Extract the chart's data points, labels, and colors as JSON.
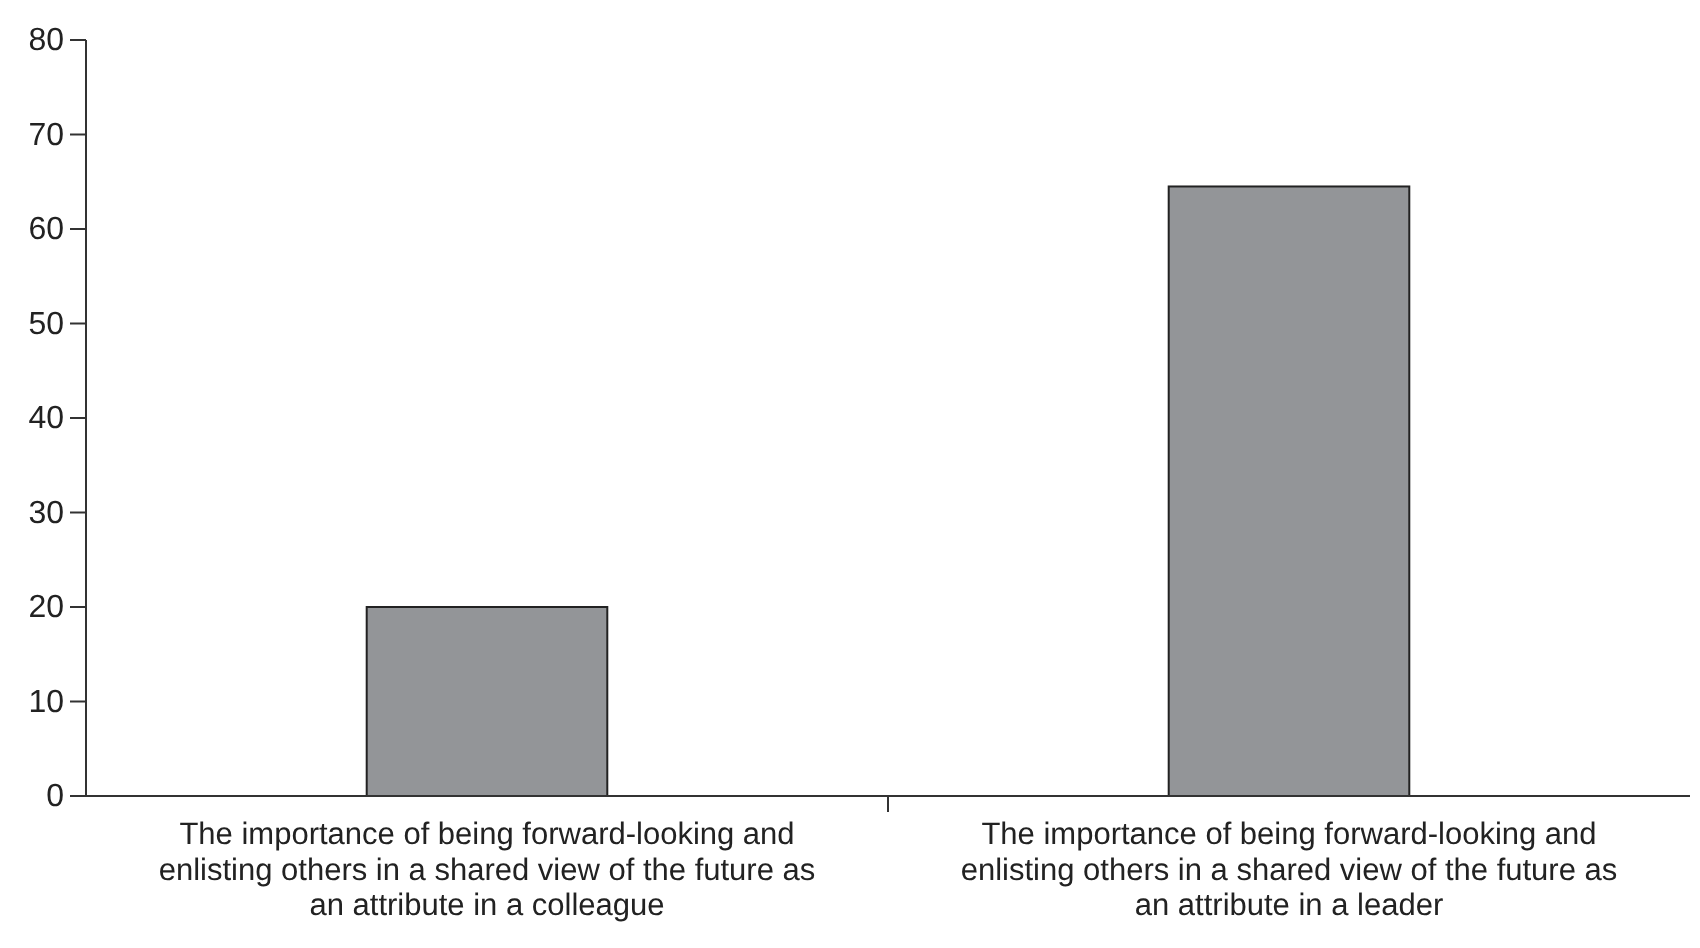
{
  "chart_data": {
    "type": "bar",
    "categories": [
      "The importance of being forward-looking and enlisting others in a shared view of the future as an attribute in a colleague",
      "The importance of being forward-looking and enlisting others in a shared view of the future as an attribute in a leader"
    ],
    "values": [
      20,
      64.5
    ],
    "color": "#939598",
    "ylim": [
      0,
      80
    ],
    "yticks": [
      0,
      10,
      20,
      30,
      40,
      50,
      60,
      70,
      80
    ],
    "grid": false
  }
}
